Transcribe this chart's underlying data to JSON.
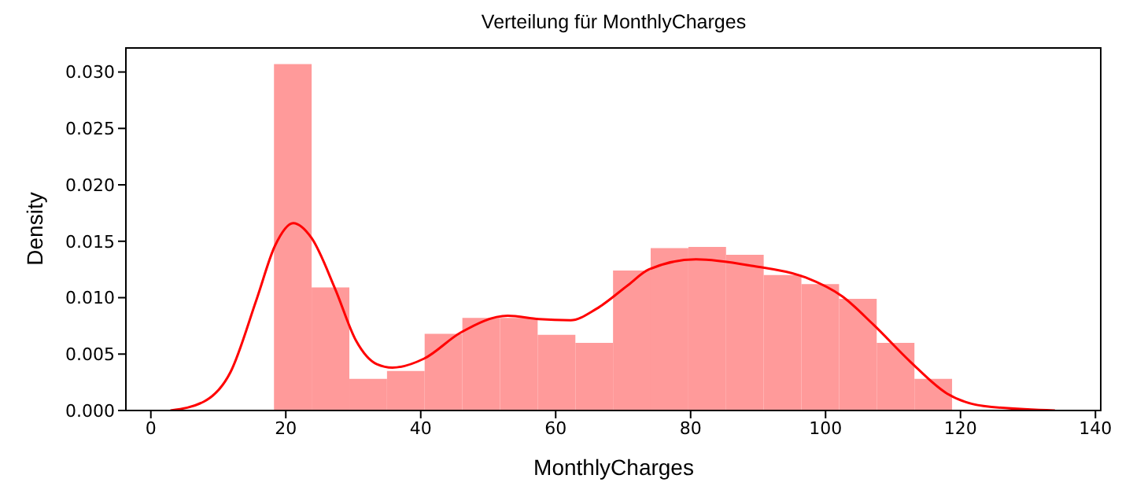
{
  "chart_data": {
    "type": "histogram",
    "title": "Verteilung für MonthlyCharges",
    "xlabel": "MonthlyCharges",
    "ylabel": "Density",
    "bins": [
      18.25,
      23.83,
      29.42,
      35.0,
      40.58,
      46.17,
      51.75,
      57.33,
      62.92,
      68.5,
      74.08,
      79.67,
      85.25,
      90.83,
      96.42,
      102.0,
      107.58,
      113.17,
      118.75
    ],
    "series": [
      {
        "color": "#ff9a9a",
        "values": [
          0.0307,
          0.0109,
          0.0028,
          0.0035,
          0.0068,
          0.0082,
          0.0082,
          0.0067,
          0.006,
          0.0124,
          0.0144,
          0.0145,
          0.0138,
          0.012,
          0.0112,
          0.0099,
          0.006,
          0.0028
        ]
      },
      {
        "type": "line",
        "color": "#ff0000",
        "x": [
          2.9,
          7.9,
          11.8,
          15.7,
          18.4,
          21.1,
          23.8,
          27.3,
          30.4,
          33.5,
          35.8,
          40.5,
          45.9,
          52.9,
          57.5,
          62.2,
          66.0,
          70.7,
          73.8,
          80.8,
          89.3,
          97.0,
          102.5,
          107.1,
          112.6,
          118.0,
          123.4,
          134.0
        ],
        "values": [
          0,
          0.0008,
          0.0034,
          0.0099,
          0.0146,
          0.0166,
          0.0153,
          0.0108,
          0.0062,
          0.0041,
          0.0038,
          0.0046,
          0.0069,
          0.0084,
          0.0081,
          0.008,
          0.009,
          0.0111,
          0.0125,
          0.0134,
          0.0128,
          0.0118,
          0.0101,
          0.0076,
          0.0043,
          0.0015,
          0.0004,
          0
        ]
      }
    ],
    "xlim": [
      -3.7,
      140.9
    ],
    "xticks": [
      0,
      20,
      40,
      60,
      80,
      100,
      120,
      140
    ],
    "ylim": [
      0,
      0.0322
    ],
    "yticks": [
      {
        "value": 0,
        "label": "0.000"
      },
      {
        "value": 0.005,
        "label": "0.005"
      },
      {
        "value": 0.01,
        "label": "0.010"
      },
      {
        "value": 0.015,
        "label": "0.015"
      },
      {
        "value": 0.02,
        "label": "0.020"
      },
      {
        "value": 0.025,
        "label": "0.025"
      },
      {
        "value": 0.03,
        "label": "0.030"
      }
    ],
    "grid": false,
    "legend": false
  }
}
